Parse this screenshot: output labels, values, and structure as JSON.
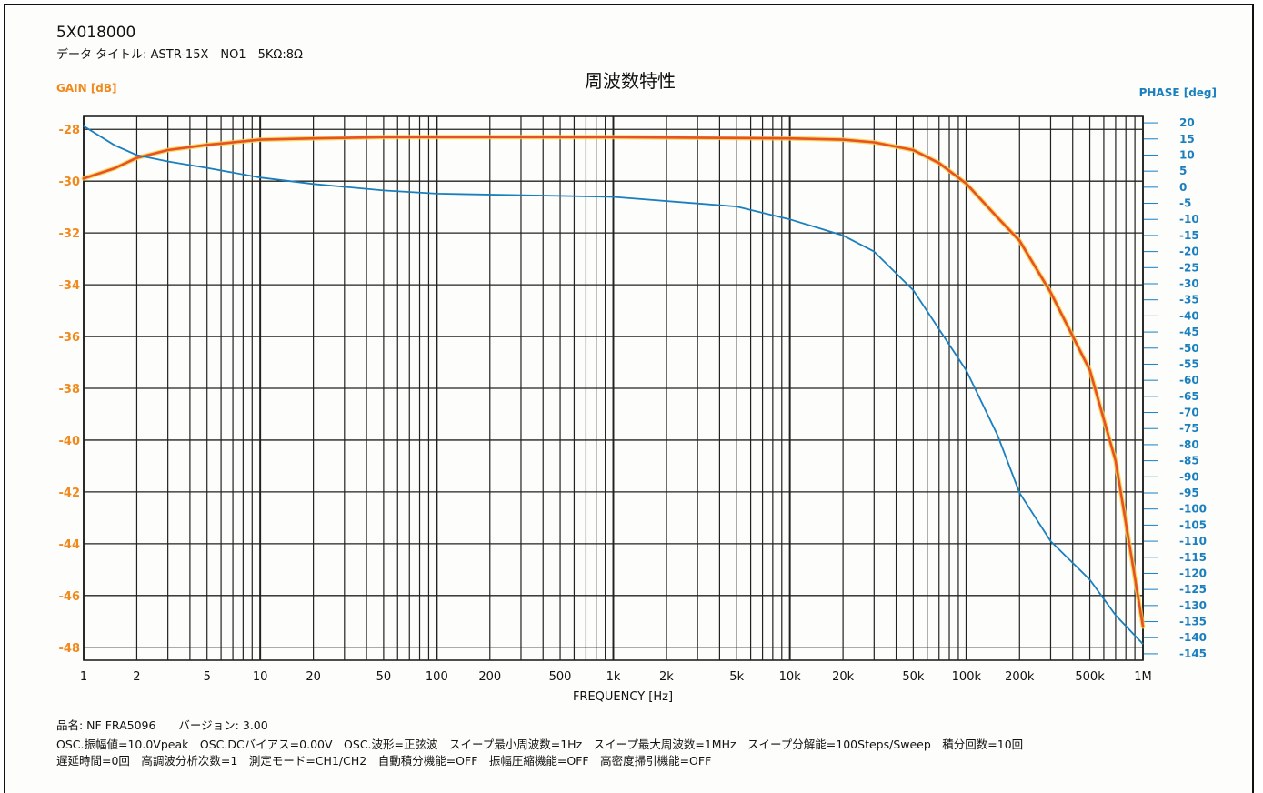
{
  "header": {
    "id_code": "5X018000",
    "data_title": "データ タイトル: ASTR-15X　NO1　5KΩ:8Ω"
  },
  "footer": {
    "line1": "品名: NF FRA5096　　バージョン: 3.00",
    "line2": "OSC.振幅値=10.0Vpeak　OSC.DCバイアス=0.00V　OSC.波形=正弦波　スイープ最小周波数=1Hz　スイープ最大周波数=1MHz　スイープ分解能=100Steps/Sweep　積分回数=10回",
    "line3": "遅延時間=0回　高調波分析次数=1　測定モード=CH1/CH2　自動積分機能=OFF　振幅圧縮機能=OFF　高密度掃引機能=OFF"
  },
  "colors": {
    "gain": "#f08a1c",
    "gain_line": "#e8502a",
    "phase": "#1a7fbf",
    "grid": "#222222"
  },
  "chart_data": {
    "type": "line",
    "title": "周波数特性",
    "xlabel": "FREQUENCY [Hz]",
    "ylabel_left": "GAIN [dB]",
    "ylabel_right": "PHASE [deg]",
    "x_scale": "log",
    "xlim": [
      1,
      1000000
    ],
    "ylim_left": [
      -48.5,
      -27.5
    ],
    "ylim_right": [
      -147,
      22
    ],
    "grid": true,
    "x_tick_values": [
      1,
      2,
      5,
      10,
      20,
      50,
      100,
      200,
      500,
      1000,
      2000,
      5000,
      10000,
      20000,
      50000,
      100000,
      200000,
      500000,
      1000000
    ],
    "x_tick_labels": [
      "1",
      "2",
      "5",
      "10",
      "20",
      "50",
      "100",
      "200",
      "500",
      "1k",
      "2k",
      "5k",
      "10k",
      "20k",
      "50k",
      "100k",
      "200k",
      "500k",
      "1M"
    ],
    "y_left_ticks": [
      -28,
      -30,
      -32,
      -34,
      -36,
      -38,
      -40,
      -42,
      -44,
      -46,
      -48
    ],
    "y_right_ticks": [
      20,
      15,
      10,
      5,
      0,
      -5,
      -10,
      -15,
      -20,
      -25,
      -30,
      -35,
      -40,
      -45,
      -50,
      -55,
      -60,
      -65,
      -70,
      -75,
      -80,
      -85,
      -90,
      -95,
      -100,
      -105,
      -110,
      -115,
      -120,
      -125,
      -130,
      -135,
      -140,
      -145
    ],
    "series": [
      {
        "axis": "left",
        "x": [
          1,
          1.5,
          2,
          3,
          5,
          10,
          20,
          50,
          100,
          1000,
          10000,
          20000,
          30000,
          50000,
          70000,
          100000,
          150000,
          200000,
          300000,
          500000,
          700000,
          1000000
        ],
        "values": [
          -29.9,
          -29.5,
          -29.1,
          -28.8,
          -28.6,
          -28.4,
          -28.35,
          -28.3,
          -28.3,
          -28.3,
          -28.35,
          -28.4,
          -28.5,
          -28.8,
          -29.3,
          -30.1,
          -31.4,
          -32.3,
          -34.3,
          -37.3,
          -40.8,
          -47.2
        ]
      },
      {
        "axis": "right",
        "x": [
          1,
          1.5,
          2,
          3,
          5,
          10,
          20,
          50,
          100,
          1000,
          5000,
          10000,
          20000,
          30000,
          50000,
          100000,
          150000,
          200000,
          300000,
          500000,
          700000,
          1000000
        ],
        "values": [
          19,
          13,
          10,
          8,
          6,
          3,
          1,
          -1,
          -2,
          -3,
          -6,
          -10,
          -15,
          -20,
          -32,
          -57,
          -77,
          -95,
          -110,
          -122,
          -133,
          -142
        ]
      }
    ]
  }
}
